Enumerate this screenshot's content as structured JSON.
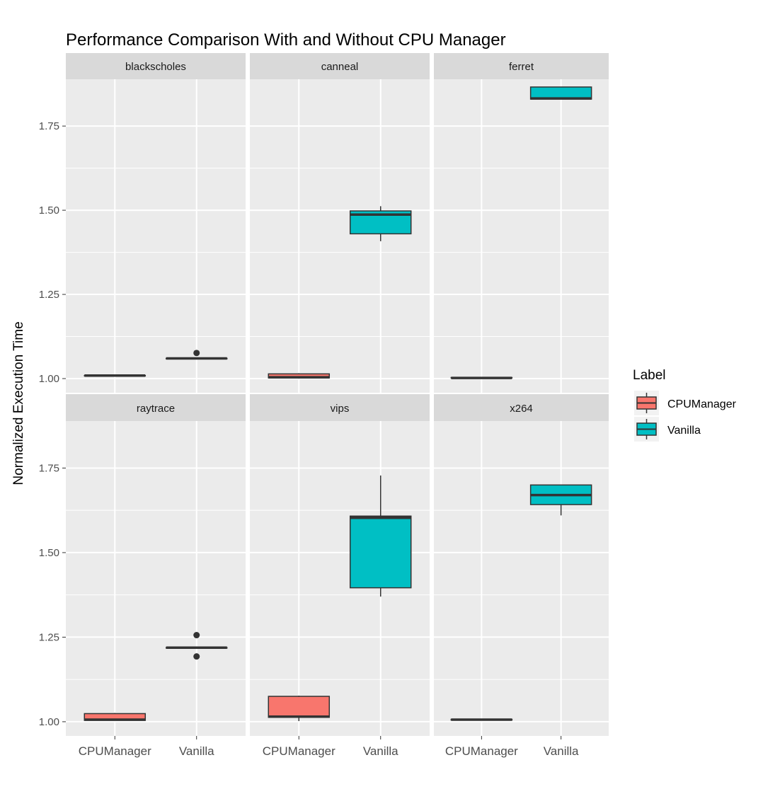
{
  "chart_data": {
    "type": "boxplot",
    "title": "Performance Comparison With and Without CPU Manager",
    "xlabel": "",
    "ylabel": "Normalized Execution Time",
    "categories": [
      "CPUManager",
      "Vanilla"
    ],
    "ylim": [
      0.958,
      1.889
    ],
    "yticks": [
      1.0,
      1.25,
      1.5,
      1.75
    ],
    "ytick_labels": [
      "1.00",
      "1.25",
      "1.50",
      "1.75"
    ],
    "grid": true,
    "legend": {
      "title": "Label",
      "position": "right",
      "entries": [
        {
          "name": "CPUManager",
          "color": "#F8766D"
        },
        {
          "name": "Vanilla",
          "color": "#00BFC4"
        }
      ]
    },
    "facets": [
      {
        "name": "blackscholes",
        "boxes": [
          {
            "category": "CPUManager",
            "min": 1.009,
            "q1": 1.009,
            "median": 1.009,
            "q3": 1.009,
            "max": 1.01,
            "outliers": []
          },
          {
            "category": "Vanilla",
            "min": 1.06,
            "q1": 1.06,
            "median": 1.06,
            "q3": 1.06,
            "max": 1.06,
            "outliers": [
              1.076
            ]
          }
        ]
      },
      {
        "name": "canneal",
        "boxes": [
          {
            "category": "CPUManager",
            "min": 1.0,
            "q1": 1.002,
            "median": 1.004,
            "q3": 1.014,
            "max": 1.016,
            "outliers": []
          },
          {
            "category": "Vanilla",
            "min": 1.408,
            "q1": 1.43,
            "median": 1.487,
            "q3": 1.498,
            "max": 1.512,
            "outliers": []
          }
        ]
      },
      {
        "name": "ferret",
        "boxes": [
          {
            "category": "CPUManager",
            "min": 1.002,
            "q1": 1.002,
            "median": 1.002,
            "q3": 1.003,
            "max": 1.003,
            "outliers": []
          },
          {
            "category": "Vanilla",
            "min": 1.83,
            "q1": 1.83,
            "median": 1.832,
            "q3": 1.866,
            "max": 1.866,
            "outliers": []
          }
        ]
      },
      {
        "name": "raytrace",
        "boxes": [
          {
            "category": "CPUManager",
            "min": 1.004,
            "q1": 1.004,
            "median": 1.006,
            "q3": 1.024,
            "max": 1.026,
            "outliers": []
          },
          {
            "category": "Vanilla",
            "min": 1.219,
            "q1": 1.219,
            "median": 1.219,
            "q3": 1.219,
            "max": 1.219,
            "outliers": [
              1.256,
              1.193
            ]
          }
        ]
      },
      {
        "name": "vips",
        "boxes": [
          {
            "category": "CPUManager",
            "min": 1.002,
            "q1": 1.013,
            "median": 1.015,
            "q3": 1.075,
            "max": 1.077,
            "outliers": []
          },
          {
            "category": "Vanilla",
            "min": 1.37,
            "q1": 1.396,
            "median": 1.603,
            "q3": 1.608,
            "max": 1.728,
            "outliers": []
          }
        ]
      },
      {
        "name": "x264",
        "boxes": [
          {
            "category": "CPUManager",
            "min": 1.005,
            "q1": 1.005,
            "median": 1.006,
            "q3": 1.007,
            "max": 1.007,
            "outliers": []
          },
          {
            "category": "Vanilla",
            "min": 1.61,
            "q1": 1.642,
            "median": 1.67,
            "q3": 1.7,
            "max": 1.7,
            "outliers": []
          }
        ]
      }
    ]
  }
}
